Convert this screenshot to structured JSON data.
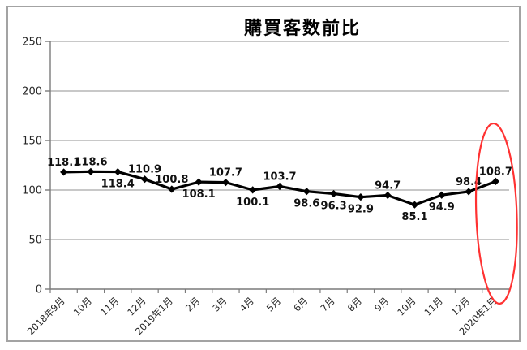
{
  "chart": {
    "title": "購買客数前比"
  },
  "chart_data": {
    "type": "line",
    "title": "購買客数前比",
    "categories": [
      "2018年9月",
      "10月",
      "11月",
      "12月",
      "2019年1月",
      "2月",
      "3月",
      "4月",
      "5月",
      "6月",
      "7月",
      "8月",
      "9月",
      "10月",
      "11月",
      "12月",
      "2020年1月"
    ],
    "series": [
      {
        "name": "購買客数前比",
        "values": [
          118.1,
          118.6,
          118.4,
          110.9,
          100.8,
          108.1,
          107.7,
          100.1,
          103.7,
          98.6,
          96.3,
          92.9,
          94.7,
          85.1,
          94.9,
          98.4,
          108.7
        ]
      }
    ],
    "data_label_positions": [
      "above",
      "above",
      "below",
      "above",
      "above",
      "below",
      "above",
      "below",
      "above",
      "below",
      "below",
      "below",
      "above",
      "below",
      "below",
      "above",
      "above"
    ],
    "xlabel": "",
    "ylabel": "",
    "ylim": [
      0,
      250
    ],
    "yticks": [
      0,
      50,
      100,
      150,
      200,
      250
    ],
    "grid": true,
    "legend_position": "none",
    "line_color": "#000000",
    "marker": "diamond",
    "gridline_color": "#a8a8a8",
    "axis_color": "#7a7a7a",
    "tick_label_color": "#262626",
    "annotation": {
      "shape": "ellipse",
      "target_category": "2020年1月",
      "target_value": 108.7,
      "color": "#ff3232"
    }
  }
}
